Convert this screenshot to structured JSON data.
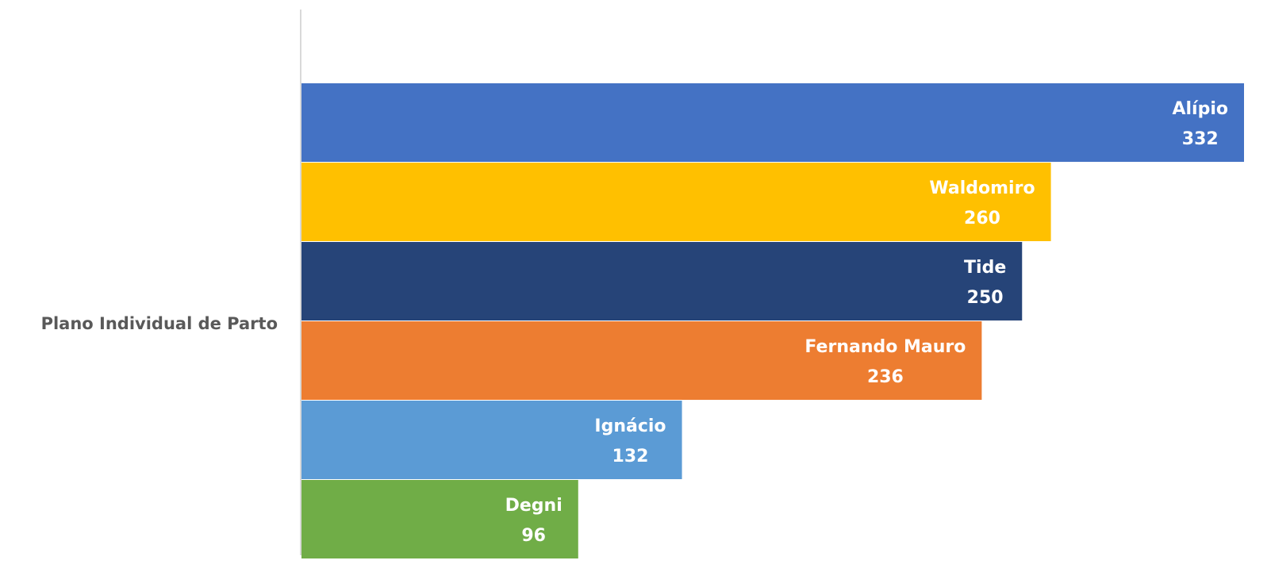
{
  "chart_data": {
    "type": "bar",
    "orientation": "horizontal",
    "categories": [
      "Plano Individual de Parto"
    ],
    "series": [
      {
        "name": "Alípio",
        "color": "#4472c4",
        "values": [
          332
        ]
      },
      {
        "name": "Waldomiro",
        "color": "#ffc000",
        "values": [
          260
        ]
      },
      {
        "name": "Tide",
        "color": "#264478",
        "values": [
          250
        ]
      },
      {
        "name": "Fernando Mauro",
        "color": "#ed7d31",
        "values": [
          236
        ]
      },
      {
        "name": "Ignácio",
        "color": "#5b9bd5",
        "values": [
          132
        ]
      },
      {
        "name": "Degni",
        "color": "#70ad47",
        "values": [
          96
        ]
      }
    ],
    "xlim": [
      0,
      327
    ]
  }
}
